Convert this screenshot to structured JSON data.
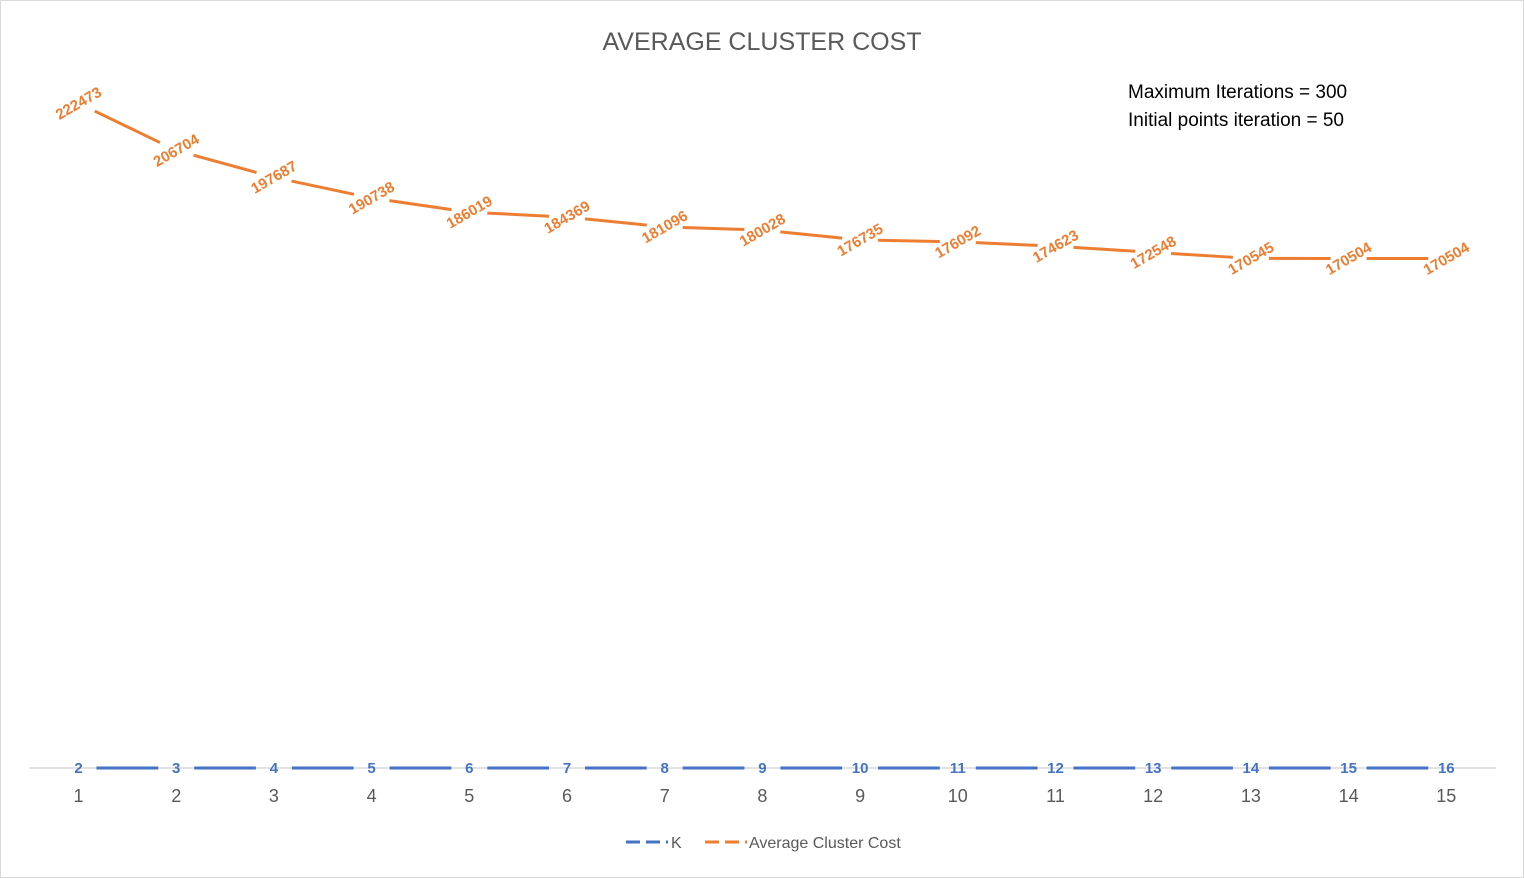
{
  "chart_data": {
    "type": "line",
    "title": "AVERAGE CLUSTER COST",
    "annotations": [
      "Maximum Iterations = 300",
      "Initial points iteration = 50"
    ],
    "x": [
      1,
      2,
      3,
      4,
      5,
      6,
      7,
      8,
      9,
      10,
      11,
      12,
      13,
      14,
      15
    ],
    "series": [
      {
        "name": "K",
        "color": "#4472c4",
        "values": [
          2,
          3,
          4,
          5,
          6,
          7,
          8,
          9,
          10,
          11,
          12,
          13,
          14,
          15,
          16
        ]
      },
      {
        "name": "Average Cluster Cost",
        "color": "#ed7d31",
        "values": [
          222473,
          206704,
          197687,
          190738,
          186019,
          184369,
          181096,
          180028,
          176735,
          176092,
          174623,
          172548,
          170545,
          170504,
          170504
        ]
      }
    ],
    "ylim": [
      0,
      250000
    ],
    "grid": false,
    "legend": "bottom"
  }
}
